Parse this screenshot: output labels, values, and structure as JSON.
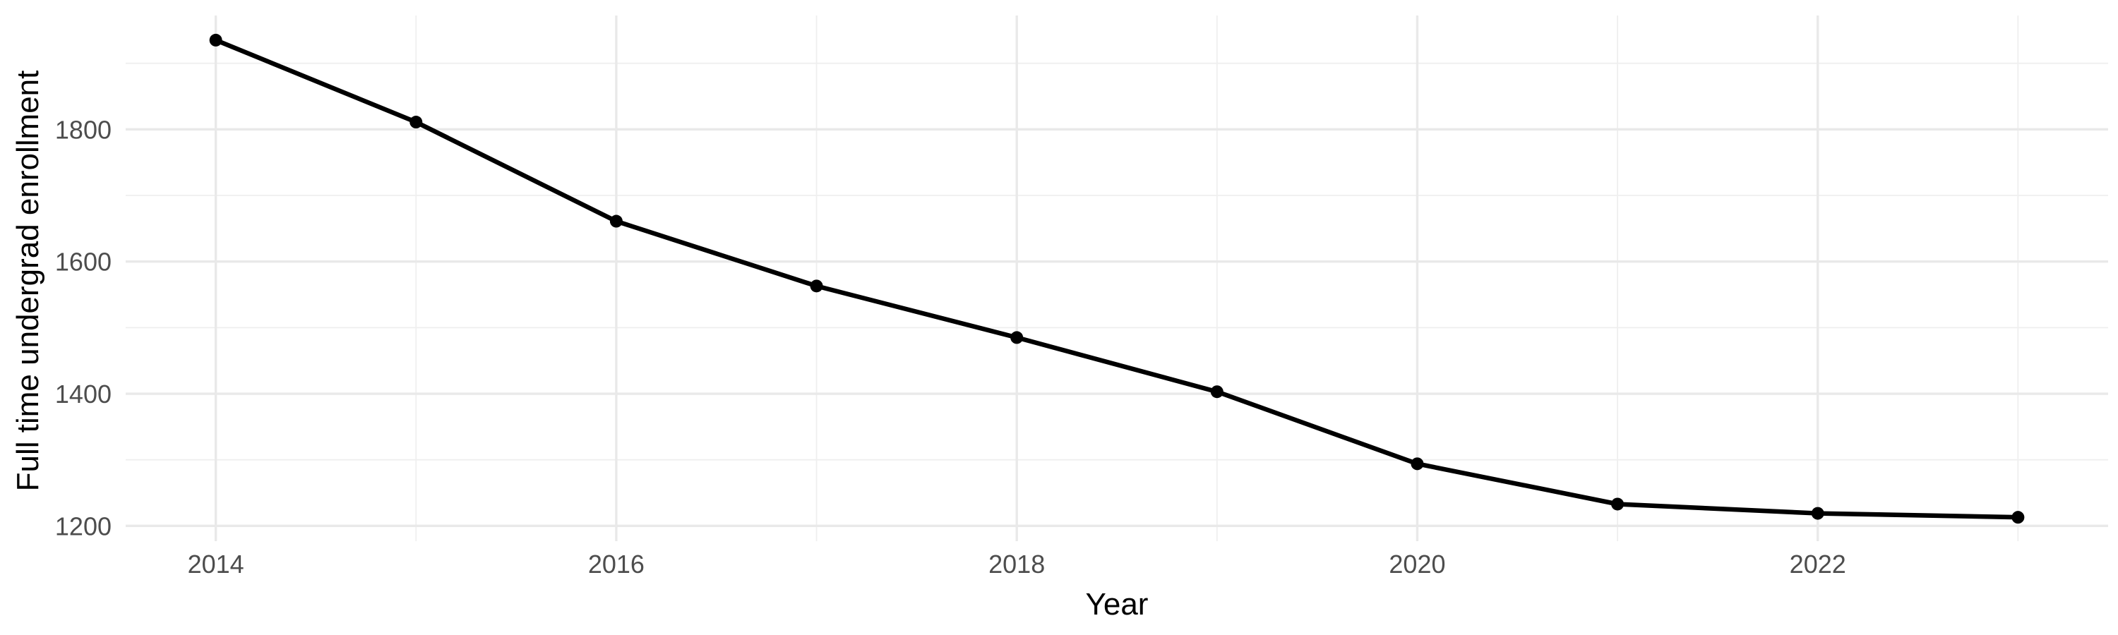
{
  "chart_data": {
    "type": "line",
    "title": "",
    "xlabel": "Year",
    "ylabel": "Full time undergrad enrollment",
    "x": [
      2014,
      2015,
      2016,
      2017,
      2018,
      2019,
      2020,
      2021,
      2022,
      2023
    ],
    "series": [
      {
        "name": "Full time undergrad enrollment",
        "values": [
          1935,
          1811,
          1661,
          1563,
          1485,
          1403,
          1294,
          1233,
          1219,
          1213
        ],
        "marker": "filled-circle"
      }
    ],
    "xlim": [
      2013.55,
      2023.45
    ],
    "ylim": [
      1176.9,
      1972.25
    ],
    "x_tick_labels": [
      "2014",
      "2016",
      "2018",
      "2020",
      "2022"
    ],
    "x_minor_gridlines": [
      2015,
      2017,
      2019,
      2021,
      2023
    ],
    "y_tick_labels": [
      "1200",
      "1400",
      "1600",
      "1800"
    ],
    "y_minor_gridlines": [
      1300,
      1500,
      1700,
      1900
    ],
    "grid": "major-and-minor",
    "legend": "none"
  },
  "style": {
    "background": "#FFFFFF",
    "line_color": "#000000",
    "point_color": "#000000",
    "grid_major_color": "#E9E9E9",
    "grid_minor_color": "#EFEFEF",
    "tick_label_color": "#4D4D4D",
    "axis_title_color": "#000000"
  }
}
